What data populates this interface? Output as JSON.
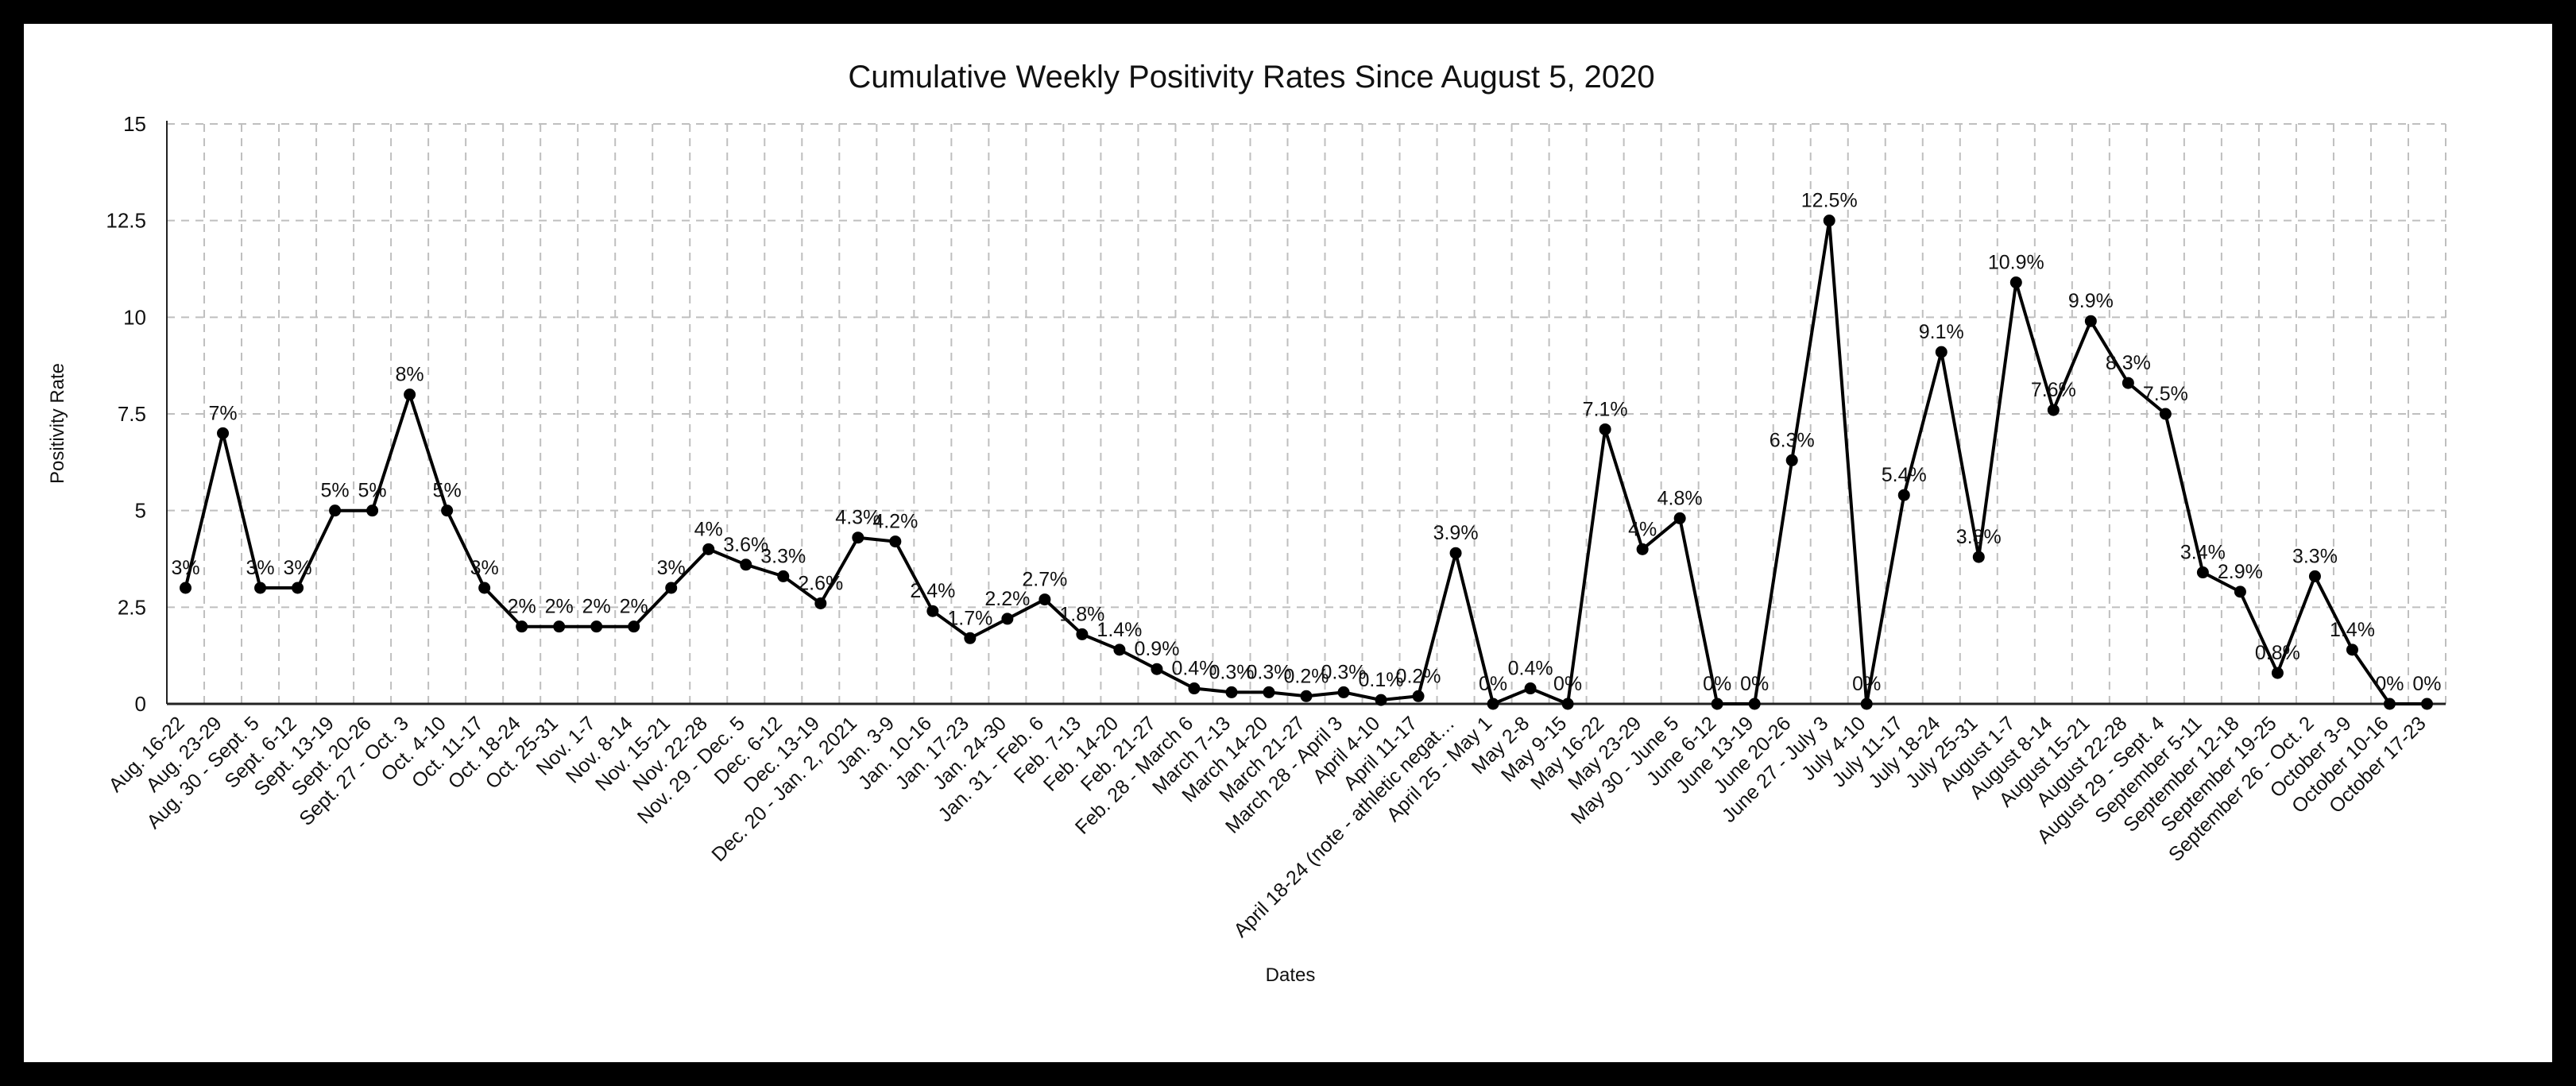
{
  "chart_data": {
    "type": "line",
    "title": "Cumulative Weekly Positivity Rates Since August 5, 2020",
    "xlabel": "Dates",
    "ylabel": "Positivity Rate",
    "ylim": [
      0,
      15
    ],
    "yticks": [
      "0",
      "2.5",
      "5",
      "7.5",
      "10",
      "12.5",
      "15"
    ],
    "grid": true,
    "legend": "none",
    "colors": {
      "line": "#000000",
      "grid": "#bfbfbf"
    },
    "categories": [
      "Aug. 16-22",
      "Aug. 23-29",
      "Aug. 30 - Sept. 5",
      "Sept. 6-12",
      "Sept. 13-19",
      "Sept. 20-26",
      "Sept. 27 - Oct. 3",
      "Oct. 4-10",
      "Oct. 11-17",
      "Oct. 18-24",
      "Oct. 25-31",
      "Nov. 1-7",
      "Nov. 8-14",
      "Nov. 15-21",
      "Nov. 22-28",
      "Nov. 29 - Dec. 5",
      "Dec. 6-12",
      "Dec. 13-19",
      "Dec. 20 - Jan. 2, 2021",
      "Jan. 3-9",
      "Jan. 10-16",
      "Jan. 17-23",
      "Jan. 24-30",
      "Jan. 31 - Feb. 6",
      "Feb. 7-13",
      "Feb. 14-20",
      "Feb. 21-27",
      "Feb. 28 - March 6",
      "March 7-13",
      "March 14-20",
      "March 21-27",
      "March 28 - April 3",
      "April 4-10",
      "April 11-17",
      "April 18-24 (note - athletic negat…",
      "April 25 - May 1",
      "May 2-8",
      "May 9-15",
      "May 16-22",
      "May 23-29",
      "May 30 - June 5",
      "June 6-12",
      "June 13-19",
      "June 20-26",
      "June 27 - July 3",
      "July 4-10",
      "July 11-17",
      "July 18-24",
      "July 25-31",
      "August 1-7",
      "August 8-14",
      "August 15-21",
      "August 22-28",
      "August 29 - Sept. 4",
      "September 5-11",
      "September 12-18",
      "September 19-25",
      "September 26 - Oct. 2",
      "October 3-9",
      "October 10-16",
      "October 17-23"
    ],
    "values": [
      3,
      7,
      3,
      3,
      5,
      5,
      8,
      5,
      3,
      2,
      2,
      2,
      2,
      3,
      4,
      3.6,
      3.3,
      2.6,
      4.3,
      4.2,
      2.4,
      1.7,
      2.2,
      2.7,
      1.8,
      1.4,
      0.9,
      0.4,
      0.3,
      0.3,
      0.2,
      0.3,
      0.1,
      0.2,
      3.9,
      0,
      0.4,
      0,
      7.1,
      4,
      4.8,
      0,
      0,
      6.3,
      12.5,
      0,
      5.4,
      9.1,
      3.8,
      10.9,
      7.6,
      9.9,
      8.3,
      7.5,
      3.4,
      2.9,
      0.8,
      3.3,
      1.4,
      0,
      0
    ],
    "data_labels": [
      "3%",
      "7%",
      "3%",
      "3%",
      "5%",
      "5%",
      "8%",
      "5%",
      "3%",
      "2%",
      "2%",
      "2%",
      "2%",
      "3%",
      "4%",
      "3.6%",
      "3.3%",
      "2.6%",
      "4.3%",
      "4.2%",
      "2.4%",
      "1.7%",
      "2.2%",
      "2.7%",
      "1.8%",
      "1.4%",
      "0.9%",
      "0.4%",
      "0.3%",
      "0.3%",
      "0.2%",
      "0.3%",
      "0.1%",
      "0.2%",
      "3.9%",
      "0%",
      "0.4%",
      "0%",
      "7.1%",
      "4%",
      "4.8%",
      "0%",
      "0%",
      "6.3%",
      "12.5%",
      "0%",
      "5.4%",
      "9.1%",
      "3.8%",
      "10.9%",
      "7.6%",
      "9.9%",
      "8.3%",
      "7.5%",
      "3.4%",
      "2.9%",
      "0.8%",
      "3.3%",
      "1.4%",
      "0%",
      "0%"
    ]
  }
}
